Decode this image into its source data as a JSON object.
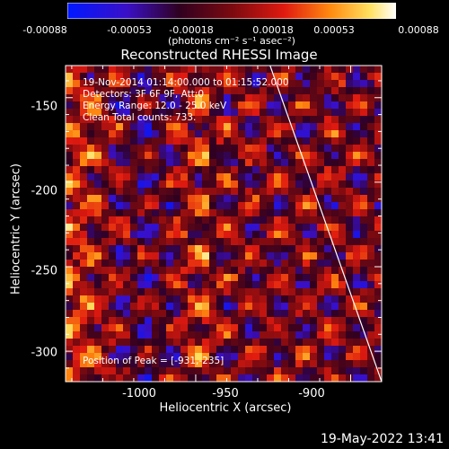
{
  "colorbar": {
    "ticks": [
      "-0.00088",
      "-0.00053",
      "-0.00018",
      "0.00018",
      "0.00053",
      "0.00088"
    ],
    "units": "(photons cm⁻² s⁻¹ asec⁻²)"
  },
  "chart_data": {
    "type": "heatmap",
    "title": "Reconstructed RHESSI Image",
    "xlabel": "Heliocentric X (arcsec)",
    "ylabel": "Heliocentric Y (arcsec)",
    "xlim": [
      -1042,
      -940
    ],
    "ylim": [
      -318,
      -131
    ],
    "x_ticks": [
      -1000,
      -950,
      -900
    ],
    "x_tick_labels": [
      "-1000",
      "-950",
      "-900"
    ],
    "y_ticks": [
      -150,
      -200,
      -250,
      -300
    ],
    "y_tick_labels": [
      "-150",
      "-200",
      "-250",
      "-300"
    ],
    "colorbar_range": [
      -0.00088,
      0.00088
    ],
    "colormap": "blue-purple-red-orange-yellow-white",
    "limb_line": {
      "x": [
        -976,
        -940
      ],
      "y": [
        -131,
        -318
      ]
    },
    "grid": false
  },
  "annotations": {
    "time_range": "19-Nov-2014 01:14:00.000 to 01:15:52.000",
    "detectors": "Detectors: 3F 6F 9F, Att:0",
    "energy": "Energy Range: 12.0 - 25.0 keV",
    "clean": "Clean      Total counts: 733.",
    "peak": "Position of Peak = [-931,-235]"
  },
  "footer_date": "19-May-2022 13:41"
}
